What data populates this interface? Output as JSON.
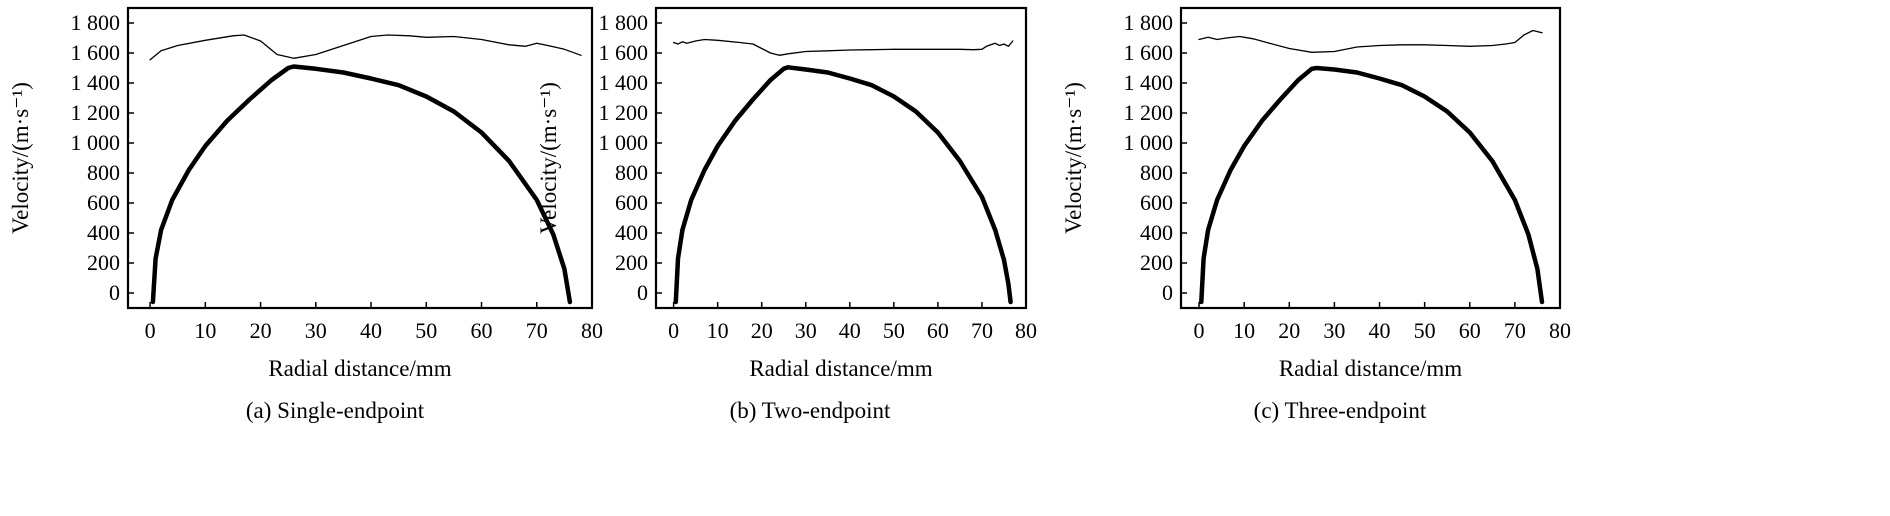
{
  "figure": {
    "panels": [
      {
        "caption": "(a) Single-endpoint"
      },
      {
        "caption": "(b) Two-endpoint"
      },
      {
        "caption": "(c) Three-endpoint"
      }
    ]
  },
  "chart_data": [
    {
      "type": "line",
      "title": "(a) Single-endpoint",
      "xlabel": "Radial distance/mm",
      "ylabel": "Velocity/(m·s⁻¹)",
      "xlim": [
        -4,
        80
      ],
      "ylim": [
        -100,
        1900
      ],
      "xticks": [
        0,
        10,
        20,
        30,
        40,
        50,
        60,
        70,
        80
      ],
      "yticks": [
        0,
        200,
        400,
        600,
        800,
        1000,
        1200,
        1400,
        1600,
        1800
      ],
      "ytick_labels": [
        "0",
        "200",
        "400",
        "600",
        "800",
        "1 000",
        "1 200",
        "1 400",
        "1 600",
        "1 800"
      ],
      "grid": false,
      "series": [
        {
          "style": "thin",
          "x": [
            0,
            2,
            5,
            10,
            15,
            17,
            20,
            23,
            26,
            30,
            35,
            40,
            43,
            47,
            50,
            55,
            60,
            65,
            68,
            70,
            72,
            75,
            78
          ],
          "y": [
            1555,
            1615,
            1650,
            1685,
            1715,
            1720,
            1680,
            1590,
            1565,
            1590,
            1650,
            1710,
            1720,
            1715,
            1705,
            1710,
            1690,
            1655,
            1645,
            1665,
            1650,
            1625,
            1585
          ]
        },
        {
          "style": "thick",
          "x": [
            0.5,
            1,
            2,
            4,
            7,
            10,
            14,
            18,
            22,
            25,
            26,
            30,
            35,
            40,
            45,
            50,
            55,
            60,
            65,
            70,
            73,
            75,
            76
          ],
          "y": [
            -60,
            230,
            420,
            620,
            820,
            980,
            1150,
            1290,
            1420,
            1500,
            1510,
            1495,
            1470,
            1430,
            1385,
            1310,
            1210,
            1070,
            880,
            620,
            390,
            160,
            -60
          ]
        }
      ]
    },
    {
      "type": "line",
      "title": "(b) Two-endpoint",
      "xlabel": "Radial distance/mm",
      "ylabel": "Velocity/(m·s⁻¹)",
      "xlim": [
        -4,
        80
      ],
      "ylim": [
        -100,
        1900
      ],
      "xticks": [
        0,
        10,
        20,
        30,
        40,
        50,
        60,
        70,
        80
      ],
      "yticks": [
        0,
        200,
        400,
        600,
        800,
        1000,
        1200,
        1400,
        1600,
        1800
      ],
      "ytick_labels": [
        "0",
        "200",
        "400",
        "600",
        "800",
        "1 000",
        "1 200",
        "1 400",
        "1 600",
        "1 800"
      ],
      "grid": false,
      "series": [
        {
          "style": "thin",
          "x": [
            0,
            1,
            2,
            3,
            5,
            7,
            10,
            15,
            18,
            20,
            22,
            24,
            26,
            30,
            35,
            40,
            45,
            50,
            55,
            60,
            65,
            68,
            70,
            71,
            73,
            74,
            75,
            76,
            77
          ],
          "y": [
            1670,
            1660,
            1675,
            1665,
            1680,
            1690,
            1685,
            1670,
            1660,
            1630,
            1600,
            1585,
            1595,
            1610,
            1615,
            1620,
            1622,
            1625,
            1625,
            1625,
            1625,
            1622,
            1625,
            1645,
            1665,
            1650,
            1660,
            1645,
            1680
          ]
        },
        {
          "style": "thick",
          "x": [
            0.5,
            1,
            2,
            4,
            7,
            10,
            14,
            18,
            22,
            25,
            26,
            30,
            35,
            40,
            45,
            50,
            55,
            60,
            65,
            70,
            73,
            75,
            76,
            76.5
          ],
          "y": [
            -60,
            230,
            420,
            620,
            820,
            980,
            1150,
            1290,
            1420,
            1495,
            1505,
            1490,
            1470,
            1430,
            1385,
            1310,
            1210,
            1070,
            880,
            640,
            420,
            220,
            60,
            -60
          ]
        }
      ]
    },
    {
      "type": "line",
      "title": "(c) Three-endpoint",
      "xlabel": "Radial distance/mm",
      "ylabel": "Velocity/(m·s⁻¹)",
      "xlim": [
        -4,
        80
      ],
      "ylim": [
        -100,
        1900
      ],
      "xticks": [
        0,
        10,
        20,
        30,
        40,
        50,
        60,
        70,
        80
      ],
      "yticks": [
        0,
        200,
        400,
        600,
        800,
        1000,
        1200,
        1400,
        1600,
        1800
      ],
      "ytick_labels": [
        "0",
        "200",
        "400",
        "600",
        "800",
        "1 000",
        "1 200",
        "1 400",
        "1 600",
        "1 800"
      ],
      "grid": false,
      "series": [
        {
          "style": "thin",
          "x": [
            0,
            2,
            4,
            6,
            9,
            12,
            15,
            20,
            25,
            30,
            35,
            40,
            45,
            50,
            55,
            60,
            65,
            68,
            70,
            72,
            74,
            76
          ],
          "y": [
            1690,
            1705,
            1690,
            1700,
            1710,
            1695,
            1670,
            1630,
            1605,
            1610,
            1640,
            1650,
            1655,
            1655,
            1650,
            1645,
            1650,
            1660,
            1670,
            1720,
            1750,
            1735
          ]
        },
        {
          "style": "thick",
          "x": [
            0.5,
            1,
            2,
            4,
            7,
            10,
            14,
            18,
            22,
            25,
            26,
            30,
            35,
            40,
            45,
            50,
            55,
            60,
            65,
            70,
            73,
            75,
            76
          ],
          "y": [
            -60,
            230,
            420,
            620,
            820,
            980,
            1150,
            1290,
            1420,
            1495,
            1500,
            1490,
            1470,
            1430,
            1385,
            1310,
            1210,
            1070,
            880,
            620,
            390,
            160,
            -60
          ]
        }
      ]
    }
  ]
}
